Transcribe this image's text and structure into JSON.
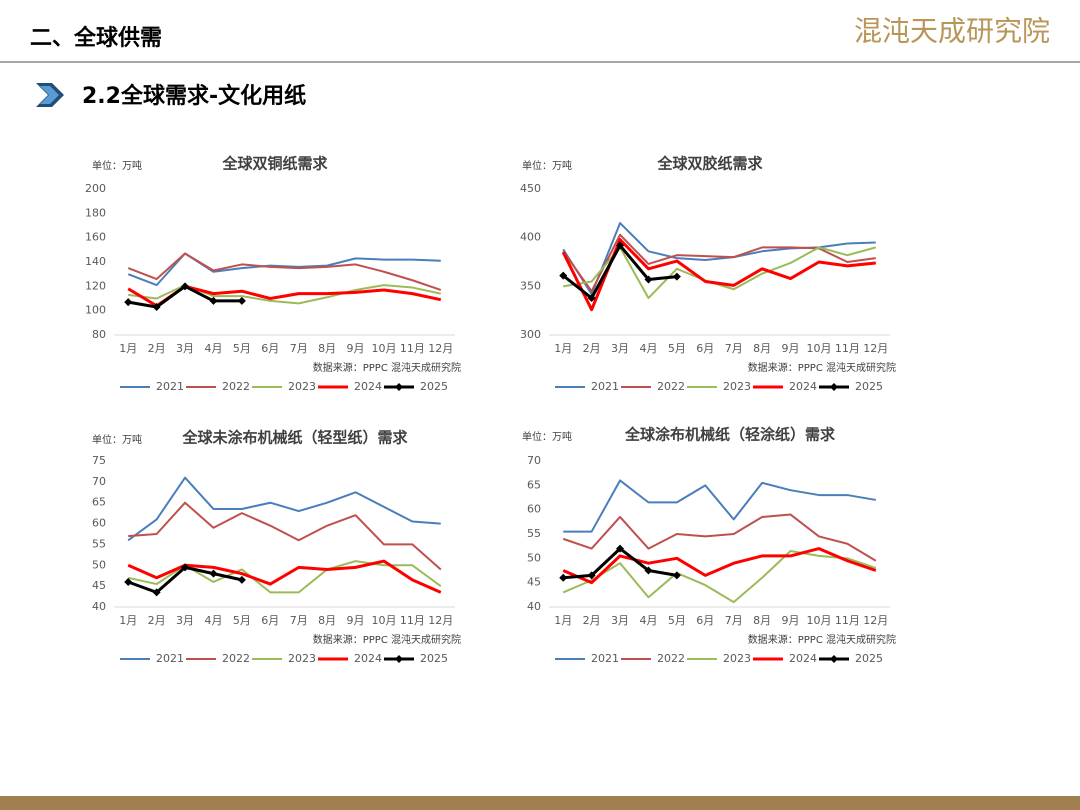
{
  "header": {
    "title": "二、全球供需",
    "subtitle": "2.2全球需求-文化用纸",
    "logo": "混沌天成研究院"
  },
  "chart_data": [
    {
      "type": "line",
      "title": "全球双铜纸需求",
      "unit": "单位：万吨",
      "source": "数据来源：PPPC  混沌天成研究院",
      "categories": [
        "1月",
        "2月",
        "3月",
        "4月",
        "5月",
        "6月",
        "7月",
        "8月",
        "9月",
        "10月",
        "11月",
        "12月"
      ],
      "ylim": [
        80,
        200
      ],
      "yticks": [
        80,
        100,
        120,
        140,
        160,
        180,
        200
      ],
      "grid": false,
      "series": [
        {
          "name": "2021",
          "color": "#4a7ebb",
          "values": [
            130,
            121,
            147,
            132,
            135,
            137,
            136,
            137,
            143,
            142,
            142,
            141
          ]
        },
        {
          "name": "2022",
          "color": "#c0504d",
          "values": [
            135,
            126,
            147,
            133,
            138,
            136,
            135,
            136,
            138,
            132,
            125,
            117
          ]
        },
        {
          "name": "2023",
          "color": "#9bbb59",
          "values": [
            113,
            110,
            121,
            112,
            112,
            108,
            106,
            111,
            117,
            121,
            119,
            114
          ]
        },
        {
          "name": "2024",
          "color": "#ff0000",
          "values": [
            118,
            104,
            120,
            114,
            116,
            110,
            114,
            114,
            115,
            117,
            114,
            109
          ]
        },
        {
          "name": "2025",
          "color": "#000000",
          "marker": "diamond",
          "values": [
            107,
            103,
            120,
            108,
            108,
            null,
            null,
            null,
            null,
            null,
            null,
            null
          ]
        }
      ]
    },
    {
      "type": "line",
      "title": "全球双胶纸需求",
      "unit": "单位：万吨",
      "source": "数据来源：PPPC  混沌天成研究院",
      "categories": [
        "1月",
        "2月",
        "3月",
        "4月",
        "5月",
        "6月",
        "7月",
        "8月",
        "9月",
        "10月",
        "11月",
        "12月"
      ],
      "ylim": [
        300,
        450
      ],
      "yticks": [
        300,
        350,
        400,
        450
      ],
      "grid": false,
      "series": [
        {
          "name": "2021",
          "color": "#4a7ebb",
          "values": [
            388,
            342,
            415,
            386,
            379,
            377,
            380,
            386,
            389,
            390,
            394,
            395
          ]
        },
        {
          "name": "2022",
          "color": "#c0504d",
          "values": [
            386,
            345,
            403,
            373,
            382,
            381,
            380,
            390,
            390,
            389,
            375,
            379
          ]
        },
        {
          "name": "2023",
          "color": "#9bbb59",
          "values": [
            350,
            355,
            390,
            338,
            368,
            356,
            347,
            363,
            374,
            390,
            382,
            390
          ]
        },
        {
          "name": "2024",
          "color": "#ff0000",
          "values": [
            385,
            326,
            398,
            368,
            376,
            355,
            351,
            368,
            358,
            375,
            371,
            374
          ]
        },
        {
          "name": "2025",
          "color": "#000000",
          "marker": "diamond",
          "values": [
            361,
            338,
            392,
            357,
            360,
            null,
            null,
            null,
            null,
            null,
            null,
            null
          ]
        }
      ]
    },
    {
      "type": "line",
      "title": "全球未涂布机械纸（轻型纸）需求",
      "unit": "单位：万吨",
      "source": "数据来源：PPPC  混沌天成研究院",
      "categories": [
        "1月",
        "2月",
        "3月",
        "4月",
        "5月",
        "6月",
        "7月",
        "8月",
        "9月",
        "10月",
        "11月",
        "12月"
      ],
      "ylim": [
        40,
        75
      ],
      "yticks": [
        40,
        45,
        50,
        55,
        60,
        65,
        70,
        75
      ],
      "grid": false,
      "series": [
        {
          "name": "2021",
          "color": "#4a7ebb",
          "values": [
            56,
            61,
            71,
            63.5,
            63.5,
            65,
            63,
            65,
            67.5,
            64,
            60.5,
            60
          ]
        },
        {
          "name": "2022",
          "color": "#c0504d",
          "values": [
            57,
            57.5,
            65,
            59,
            62.5,
            59.5,
            56,
            59.5,
            62,
            55,
            55,
            49
          ]
        },
        {
          "name": "2023",
          "color": "#9bbb59",
          "values": [
            47,
            45.5,
            50,
            46,
            49,
            43.5,
            43.5,
            49,
            51,
            50,
            50,
            45
          ]
        },
        {
          "name": "2024",
          "color": "#ff0000",
          "values": [
            50,
            47,
            50,
            49.5,
            48,
            45.5,
            49.5,
            49,
            49.5,
            51,
            46.5,
            43.5
          ]
        },
        {
          "name": "2025",
          "color": "#000000",
          "marker": "diamond",
          "values": [
            46,
            43.5,
            49.5,
            48,
            46.5,
            null,
            null,
            null,
            null,
            null,
            null,
            null
          ]
        }
      ]
    },
    {
      "type": "line",
      "title": "全球涂布机械纸（轻涂纸）需求",
      "unit": "单位：万吨",
      "source": "数据来源：PPPC  混沌天成研究院",
      "categories": [
        "1月",
        "2月",
        "3月",
        "4月",
        "5月",
        "6月",
        "7月",
        "8月",
        "9月",
        "10月",
        "11月",
        "12月"
      ],
      "ylim": [
        40,
        70
      ],
      "yticks": [
        40,
        45,
        50,
        55,
        60,
        65,
        70
      ],
      "grid": false,
      "series": [
        {
          "name": "2021",
          "color": "#4a7ebb",
          "values": [
            55.5,
            55.5,
            66,
            61.5,
            61.5,
            65,
            58,
            65.5,
            64,
            63,
            63,
            62
          ]
        },
        {
          "name": "2022",
          "color": "#c0504d",
          "values": [
            54,
            52,
            58.5,
            52,
            55,
            54.5,
            55,
            58.5,
            59,
            54.5,
            53,
            49.5
          ]
        },
        {
          "name": "2023",
          "color": "#9bbb59",
          "values": [
            43,
            45.5,
            49,
            42,
            47,
            44.5,
            41,
            46,
            51.5,
            50.5,
            50,
            48
          ]
        },
        {
          "name": "2024",
          "color": "#ff0000",
          "values": [
            47.5,
            45,
            50.5,
            49,
            50,
            46.5,
            49,
            50.5,
            50.5,
            52,
            49.5,
            47.5
          ]
        },
        {
          "name": "2025",
          "color": "#000000",
          "marker": "diamond",
          "values": [
            46,
            46.5,
            52,
            47.5,
            46.5,
            null,
            null,
            null,
            null,
            null,
            null,
            null
          ]
        }
      ]
    }
  ]
}
